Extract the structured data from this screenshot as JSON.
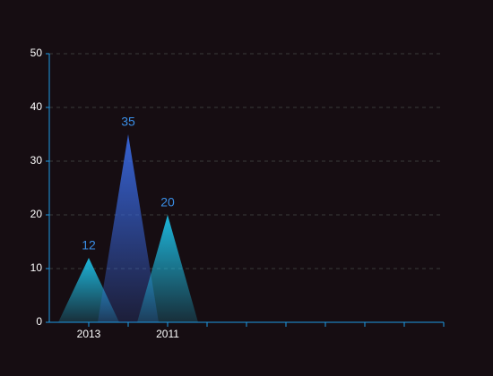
{
  "chart_data": {
    "type": "pictorial-triangle",
    "categories": [
      null,
      "2013",
      null,
      "2011",
      null,
      null,
      null,
      null,
      null,
      null,
      null
    ],
    "values": [
      null,
      12,
      35,
      20,
      null,
      null,
      null,
      null,
      null,
      null,
      null
    ],
    "colors": [
      null,
      "#1ec8f0",
      "#3a6ce8",
      "#1ec8f0",
      null,
      null,
      null,
      null,
      null,
      null,
      null
    ],
    "label_color": "#3a8ee6",
    "axis_color": "#1e9ae6",
    "ylim": [
      0,
      50
    ],
    "yticks": [
      0,
      10,
      20,
      30,
      40,
      50
    ],
    "grid": true
  }
}
